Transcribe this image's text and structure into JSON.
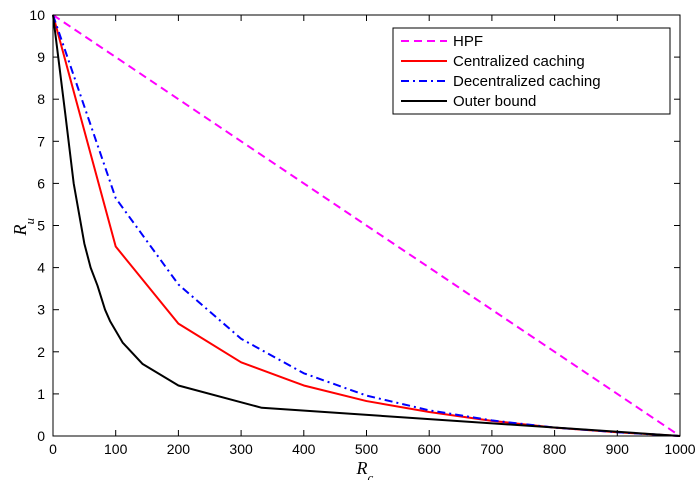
{
  "chart_data": {
    "type": "line",
    "xlabel": "R_c",
    "ylabel": "R_u",
    "xlim": [
      0,
      1000
    ],
    "ylim": [
      0,
      10
    ],
    "x_ticks": [
      0,
      100,
      200,
      300,
      400,
      500,
      600,
      700,
      800,
      900,
      1000
    ],
    "y_ticks": [
      0,
      1,
      2,
      3,
      4,
      5,
      6,
      7,
      8,
      9,
      10
    ],
    "grid": false,
    "legend_position": "top-right",
    "series": [
      {
        "name": "HPF",
        "color": "#ff00ff",
        "style": "dashed",
        "x": [
          0,
          1000
        ],
        "y": [
          10,
          0
        ]
      },
      {
        "name": "Centralized caching",
        "color": "#ff0000",
        "style": "solid",
        "x": [
          0,
          100,
          200,
          300,
          400,
          500,
          600,
          700,
          800,
          900,
          1000
        ],
        "y": [
          10,
          4.5,
          2.67,
          1.75,
          1.2,
          0.83,
          0.57,
          0.36,
          0.2,
          0.09,
          0
        ]
      },
      {
        "name": "Decentralized caching",
        "color": "#0000ff",
        "style": "dashdot",
        "x": [
          0,
          100,
          200,
          300,
          400,
          500,
          600,
          700,
          800,
          900,
          1000
        ],
        "y": [
          10,
          5.65,
          3.6,
          2.31,
          1.49,
          0.96,
          0.61,
          0.37,
          0.2,
          0.09,
          0
        ]
      },
      {
        "name": "Outer bound",
        "color": "#000000",
        "style": "solid",
        "x": [
          0,
          20,
          33,
          50,
          60,
          71,
          83,
          91,
          111,
          143,
          200,
          333,
          1000
        ],
        "y": [
          10,
          7.6,
          6.0,
          4.57,
          4.0,
          3.57,
          3.0,
          2.73,
          2.22,
          1.71,
          1.2,
          0.67,
          0
        ]
      }
    ]
  }
}
